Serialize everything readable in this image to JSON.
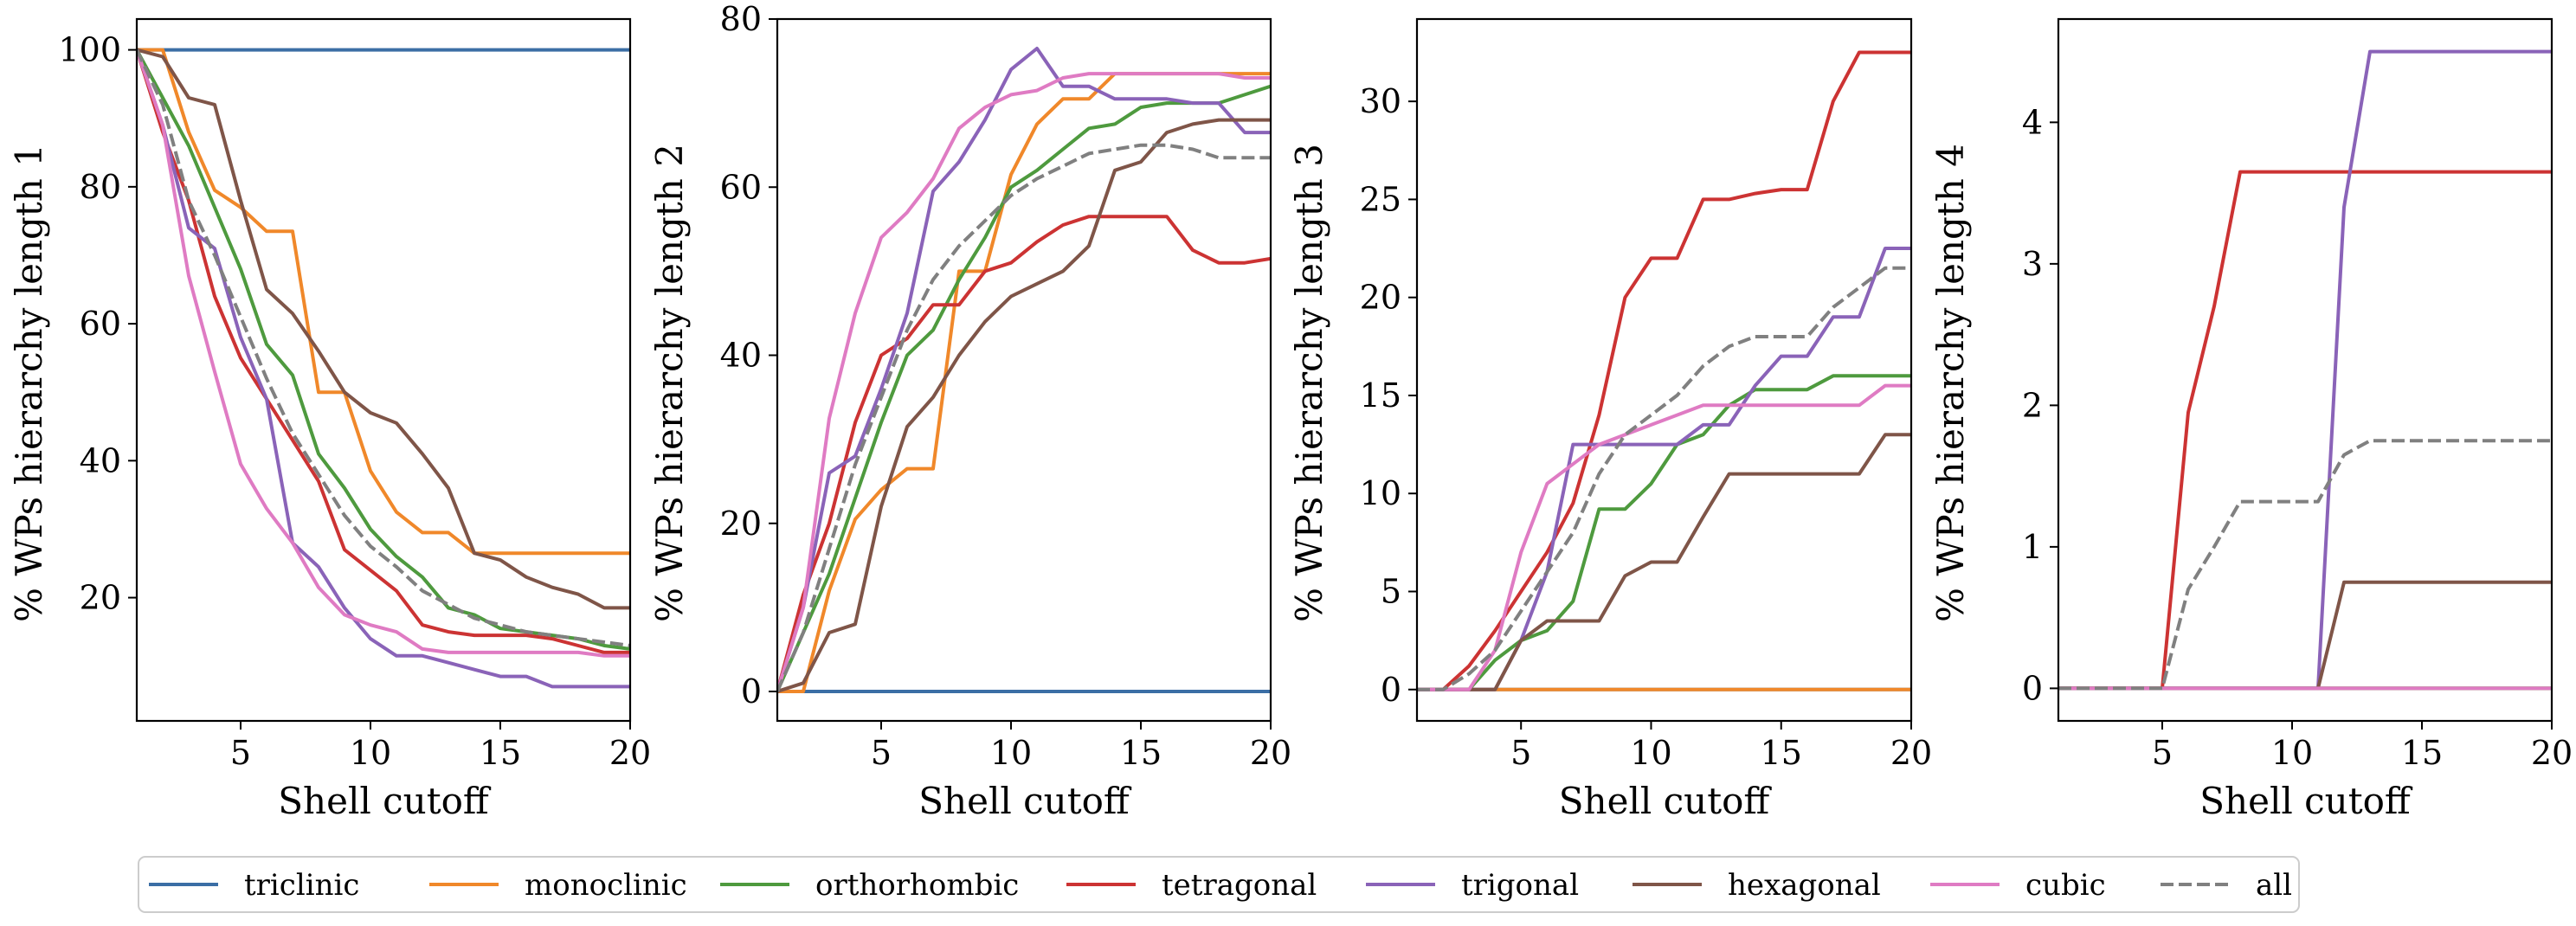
{
  "chart_data": [
    {
      "type": "line",
      "ylabel": "% WPs hierarchy length 1",
      "xlabel": "Shell cutoff",
      "xlim": [
        1,
        20
      ],
      "ylim": [
        2,
        104.5
      ],
      "xticks": [
        "5",
        "10",
        "15",
        "20"
      ],
      "yticks": [
        "20",
        "40",
        "60",
        "80",
        "100"
      ],
      "x": [
        1,
        2,
        3,
        4,
        5,
        6,
        7,
        8,
        9,
        10,
        11,
        12,
        13,
        14,
        15,
        16,
        17,
        18,
        19,
        20
      ],
      "series": [
        {
          "name": "triclinic",
          "values": [
            100,
            100,
            100,
            100,
            100,
            100,
            100,
            100,
            100,
            100,
            100,
            100,
            100,
            100,
            100,
            100,
            100,
            100,
            100,
            100
          ]
        },
        {
          "name": "monoclinic",
          "values": [
            100,
            100,
            88,
            79.5,
            77,
            73.5,
            73.5,
            50,
            50,
            38.5,
            32.5,
            29.5,
            29.5,
            26.5,
            26.5,
            26.5,
            26.5,
            26.5,
            26.5,
            26.5
          ]
        },
        {
          "name": "orthorhombic",
          "values": [
            100,
            93,
            86,
            77,
            68,
            57,
            52.5,
            41,
            36,
            30,
            26,
            23,
            18.5,
            17.5,
            15.5,
            15,
            14.5,
            14,
            13,
            12.5
          ]
        },
        {
          "name": "tetragonal",
          "values": [
            100,
            88,
            78,
            64,
            55,
            49,
            43,
            37,
            27,
            24,
            21,
            16,
            15,
            14.5,
            14.5,
            14.5,
            14,
            13,
            12,
            12
          ]
        },
        {
          "name": "trigonal",
          "values": [
            100,
            89,
            74,
            71,
            58,
            49,
            28,
            24.5,
            18.5,
            14,
            11.5,
            11.5,
            10.5,
            9.5,
            8.5,
            8.5,
            7,
            7,
            7,
            7
          ]
        },
        {
          "name": "hexagonal",
          "values": [
            100,
            99,
            93,
            92,
            78,
            65,
            61.5,
            56,
            50,
            47,
            45.5,
            41,
            36,
            26.5,
            25.5,
            23,
            21.5,
            20.5,
            18.5,
            18.5
          ]
        },
        {
          "name": "cubic",
          "values": [
            100,
            89,
            67,
            53,
            39.5,
            33,
            28,
            21.5,
            17.5,
            16,
            15,
            12.5,
            12,
            12,
            12,
            12,
            12,
            12,
            11.5,
            11.5
          ]
        },
        {
          "name": "all",
          "values": [
            100,
            92,
            78,
            70,
            61,
            52,
            44,
            38,
            32,
            27.5,
            24.5,
            21,
            19,
            17,
            16,
            15,
            14.5,
            14,
            13.5,
            13
          ]
        }
      ]
    },
    {
      "type": "line",
      "ylabel": "% WPs hierarchy length 2",
      "xlabel": "Shell cutoff",
      "xlim": [
        1,
        20
      ],
      "ylim": [
        -3.5,
        80
      ],
      "xticks": [
        "5",
        "10",
        "15",
        "20"
      ],
      "yticks": [
        "0",
        "20",
        "40",
        "60",
        "80"
      ],
      "x": [
        1,
        2,
        3,
        4,
        5,
        6,
        7,
        8,
        9,
        10,
        11,
        12,
        13,
        14,
        15,
        16,
        17,
        18,
        19,
        20
      ],
      "series": [
        {
          "name": "triclinic",
          "values": [
            0,
            0,
            0,
            0,
            0,
            0,
            0,
            0,
            0,
            0,
            0,
            0,
            0,
            0,
            0,
            0,
            0,
            0,
            0,
            0
          ]
        },
        {
          "name": "monoclinic",
          "values": [
            0,
            0,
            12,
            20.5,
            24,
            26.5,
            26.5,
            50,
            50,
            61.5,
            67.5,
            70.5,
            70.5,
            73.5,
            73.5,
            73.5,
            73.5,
            73.5,
            73.5,
            73.5
          ]
        },
        {
          "name": "orthorhombic",
          "values": [
            0,
            7,
            14,
            23,
            32,
            40,
            43,
            49,
            54,
            60,
            62,
            64.5,
            67,
            67.5,
            69.5,
            70,
            70,
            70,
            71,
            72
          ]
        },
        {
          "name": "tetragonal",
          "values": [
            0,
            11.5,
            20,
            32,
            40,
            42,
            46,
            46,
            50,
            51,
            53.5,
            55.5,
            56.5,
            56.5,
            56.5,
            56.5,
            52.5,
            51,
            51,
            51.5
          ]
        },
        {
          "name": "trigonal",
          "values": [
            0,
            10,
            26,
            28,
            36,
            45,
            59.5,
            63,
            68,
            74,
            76.5,
            72,
            72,
            70.5,
            70.5,
            70.5,
            70,
            70,
            66.5,
            66.5
          ]
        },
        {
          "name": "hexagonal",
          "values": [
            0,
            1,
            7,
            8,
            22,
            31.5,
            35,
            40,
            44,
            47,
            48.5,
            50,
            53,
            62,
            63,
            66.5,
            67.5,
            68,
            68,
            68
          ]
        },
        {
          "name": "cubic",
          "values": [
            0,
            10,
            32.5,
            45,
            54,
            57,
            61,
            67,
            69.5,
            71,
            71.5,
            73,
            73.5,
            73.5,
            73.5,
            73.5,
            73.5,
            73.5,
            73,
            73
          ]
        },
        {
          "name": "all",
          "values": [
            0,
            7,
            17,
            27,
            35,
            43,
            49,
            53,
            56,
            59,
            61,
            62.5,
            64,
            64.5,
            65,
            65,
            64.5,
            63.5,
            63.5,
            63.5
          ]
        }
      ]
    },
    {
      "type": "line",
      "ylabel": "% WPs hierarchy length 3",
      "xlabel": "Shell cutoff",
      "xlim": [
        1,
        20
      ],
      "ylim": [
        -1.6,
        34.2
      ],
      "xticks": [
        "5",
        "10",
        "15",
        "20"
      ],
      "yticks": [
        "0",
        "5",
        "10",
        "15",
        "20",
        "25",
        "30"
      ],
      "x": [
        1,
        2,
        3,
        4,
        5,
        6,
        7,
        8,
        9,
        10,
        11,
        12,
        13,
        14,
        15,
        16,
        17,
        18,
        19,
        20
      ],
      "series": [
        {
          "name": "triclinic",
          "values": [
            0,
            0,
            0,
            0,
            0,
            0,
            0,
            0,
            0,
            0,
            0,
            0,
            0,
            0,
            0,
            0,
            0,
            0,
            0,
            0
          ]
        },
        {
          "name": "monoclinic",
          "values": [
            0,
            0,
            0,
            0,
            0,
            0,
            0,
            0,
            0,
            0,
            0,
            0,
            0,
            0,
            0,
            0,
            0,
            0,
            0,
            0
          ]
        },
        {
          "name": "orthorhombic",
          "values": [
            0,
            0,
            0,
            1.5,
            2.5,
            3,
            4.5,
            9.2,
            9.2,
            10.5,
            12.5,
            13,
            14.5,
            15.3,
            15.3,
            15.3,
            16,
            16,
            16,
            16
          ]
        },
        {
          "name": "tetragonal",
          "values": [
            0,
            0,
            1.2,
            3,
            5,
            7,
            9.5,
            14,
            20,
            22,
            22,
            25,
            25,
            25.3,
            25.5,
            25.5,
            30,
            32.5,
            32.5,
            32.5
          ]
        },
        {
          "name": "trigonal",
          "values": [
            0,
            0,
            0,
            0,
            2.5,
            6,
            12.5,
            12.5,
            12.5,
            12.5,
            12.5,
            13.5,
            13.5,
            15.5,
            17,
            17,
            19,
            19,
            22.5,
            22.5
          ]
        },
        {
          "name": "hexagonal",
          "values": [
            0,
            0,
            0,
            0,
            2.5,
            3.5,
            3.5,
            3.5,
            5.8,
            6.5,
            6.5,
            8.8,
            11,
            11,
            11,
            11,
            11,
            11,
            13,
            13
          ]
        },
        {
          "name": "cubic",
          "values": [
            0,
            0,
            0,
            2,
            7,
            10.5,
            11.5,
            12.5,
            13,
            13.5,
            14,
            14.5,
            14.5,
            14.5,
            14.5,
            14.5,
            14.5,
            14.5,
            15.5,
            15.5
          ]
        },
        {
          "name": "all",
          "values": [
            0,
            0,
            0.8,
            2,
            4,
            6,
            8,
            11,
            13,
            14,
            15,
            16.5,
            17.5,
            18,
            18,
            18,
            19.5,
            20.5,
            21.5,
            21.5
          ]
        }
      ]
    },
    {
      "type": "line",
      "ylabel": "% WPs hierarchy length 4",
      "xlabel": "Shell cutoff",
      "xlim": [
        1,
        20
      ],
      "ylim": [
        -0.23,
        4.73
      ],
      "xticks": [
        "5",
        "10",
        "15",
        "20"
      ],
      "yticks": [
        "0",
        "1",
        "2",
        "3",
        "4"
      ],
      "x": [
        1,
        2,
        3,
        4,
        5,
        6,
        7,
        8,
        9,
        10,
        11,
        12,
        13,
        14,
        15,
        16,
        17,
        18,
        19,
        20
      ],
      "series": [
        {
          "name": "triclinic",
          "values": [
            0,
            0,
            0,
            0,
            0,
            0,
            0,
            0,
            0,
            0,
            0,
            0,
            0,
            0,
            0,
            0,
            0,
            0,
            0,
            0
          ]
        },
        {
          "name": "monoclinic",
          "values": [
            0,
            0,
            0,
            0,
            0,
            0,
            0,
            0,
            0,
            0,
            0,
            0,
            0,
            0,
            0,
            0,
            0,
            0,
            0,
            0
          ]
        },
        {
          "name": "orthorhombic",
          "values": [
            0,
            0,
            0,
            0,
            0,
            0,
            0,
            0,
            0,
            0,
            0,
            0,
            0,
            0,
            0,
            0,
            0,
            0,
            0,
            0
          ]
        },
        {
          "name": "tetragonal",
          "values": [
            0,
            0,
            0,
            0,
            0,
            1.95,
            2.7,
            3.65,
            3.65,
            3.65,
            3.65,
            3.65,
            3.65,
            3.65,
            3.65,
            3.65,
            3.65,
            3.65,
            3.65,
            3.65
          ]
        },
        {
          "name": "trigonal",
          "values": [
            0,
            0,
            0,
            0,
            0,
            0,
            0,
            0,
            0,
            0,
            0,
            3.4,
            4.5,
            4.5,
            4.5,
            4.5,
            4.5,
            4.5,
            4.5,
            4.5
          ]
        },
        {
          "name": "hexagonal",
          "values": [
            0,
            0,
            0,
            0,
            0,
            0,
            0,
            0,
            0,
            0,
            0,
            0.75,
            0.75,
            0.75,
            0.75,
            0.75,
            0.75,
            0.75,
            0.75,
            0.75
          ]
        },
        {
          "name": "cubic",
          "values": [
            0,
            0,
            0,
            0,
            0,
            0,
            0,
            0,
            0,
            0,
            0,
            0,
            0,
            0,
            0,
            0,
            0,
            0,
            0,
            0
          ]
        },
        {
          "name": "all",
          "values": [
            0,
            0,
            0,
            0,
            0,
            0.7,
            1,
            1.32,
            1.32,
            1.32,
            1.32,
            1.65,
            1.75,
            1.75,
            1.75,
            1.75,
            1.75,
            1.75,
            1.75,
            1.75
          ]
        }
      ]
    }
  ],
  "legend": {
    "placement": "bottom-center",
    "items": [
      {
        "name": "triclinic",
        "color": "#3b6ea5",
        "dashed": false
      },
      {
        "name": "monoclinic",
        "color": "#f0882a",
        "dashed": false
      },
      {
        "name": "orthorhombic",
        "color": "#4e9a3e",
        "dashed": false
      },
      {
        "name": "tetragonal",
        "color": "#cc3333",
        "dashed": false
      },
      {
        "name": "trigonal",
        "color": "#8a63b8",
        "dashed": false
      },
      {
        "name": "hexagonal",
        "color": "#7f5548",
        "dashed": false
      },
      {
        "name": "cubic",
        "color": "#df7bc3",
        "dashed": false
      },
      {
        "name": "all",
        "color": "#808080",
        "dashed": true
      }
    ]
  }
}
